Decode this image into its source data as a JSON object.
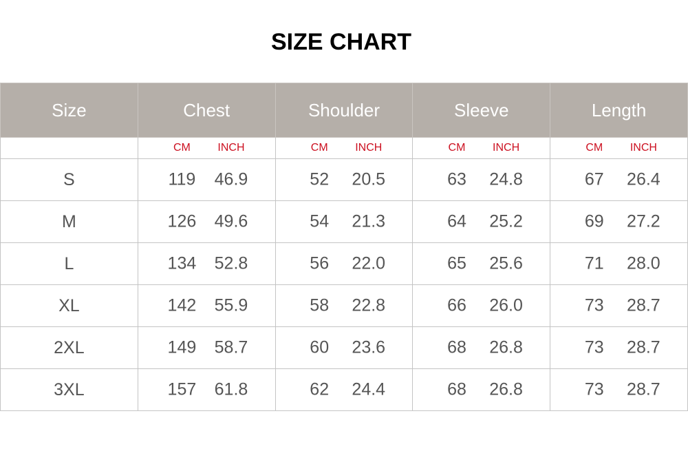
{
  "title": "SIZE CHART",
  "headers": [
    "Size",
    "Chest",
    "Shoulder",
    "Sleeve",
    "Length"
  ],
  "units": {
    "cm": "CM",
    "inch": "INCH"
  },
  "colors": {
    "header_bg": "#b5afa9",
    "unit_text": "#cc1020",
    "cell_text": "#555555"
  },
  "rows": [
    {
      "size": "S",
      "chest": [
        "119",
        "46.9"
      ],
      "shoulder": [
        "52",
        "20.5"
      ],
      "sleeve": [
        "63",
        "24.8"
      ],
      "length": [
        "67",
        "26.4"
      ]
    },
    {
      "size": "M",
      "chest": [
        "126",
        "49.6"
      ],
      "shoulder": [
        "54",
        "21.3"
      ],
      "sleeve": [
        "64",
        "25.2"
      ],
      "length": [
        "69",
        "27.2"
      ]
    },
    {
      "size": "L",
      "chest": [
        "134",
        "52.8"
      ],
      "shoulder": [
        "56",
        "22.0"
      ],
      "sleeve": [
        "65",
        "25.6"
      ],
      "length": [
        "71",
        "28.0"
      ]
    },
    {
      "size": "XL",
      "chest": [
        "142",
        "55.9"
      ],
      "shoulder": [
        "58",
        "22.8"
      ],
      "sleeve": [
        "66",
        "26.0"
      ],
      "length": [
        "73",
        "28.7"
      ]
    },
    {
      "size": "2XL",
      "chest": [
        "149",
        "58.7"
      ],
      "shoulder": [
        "60",
        "23.6"
      ],
      "sleeve": [
        "68",
        "26.8"
      ],
      "length": [
        "73",
        "28.7"
      ]
    },
    {
      "size": "3XL",
      "chest": [
        "157",
        "61.8"
      ],
      "shoulder": [
        "62",
        "24.4"
      ],
      "sleeve": [
        "68",
        "26.8"
      ],
      "length": [
        "73",
        "28.7"
      ]
    }
  ]
}
